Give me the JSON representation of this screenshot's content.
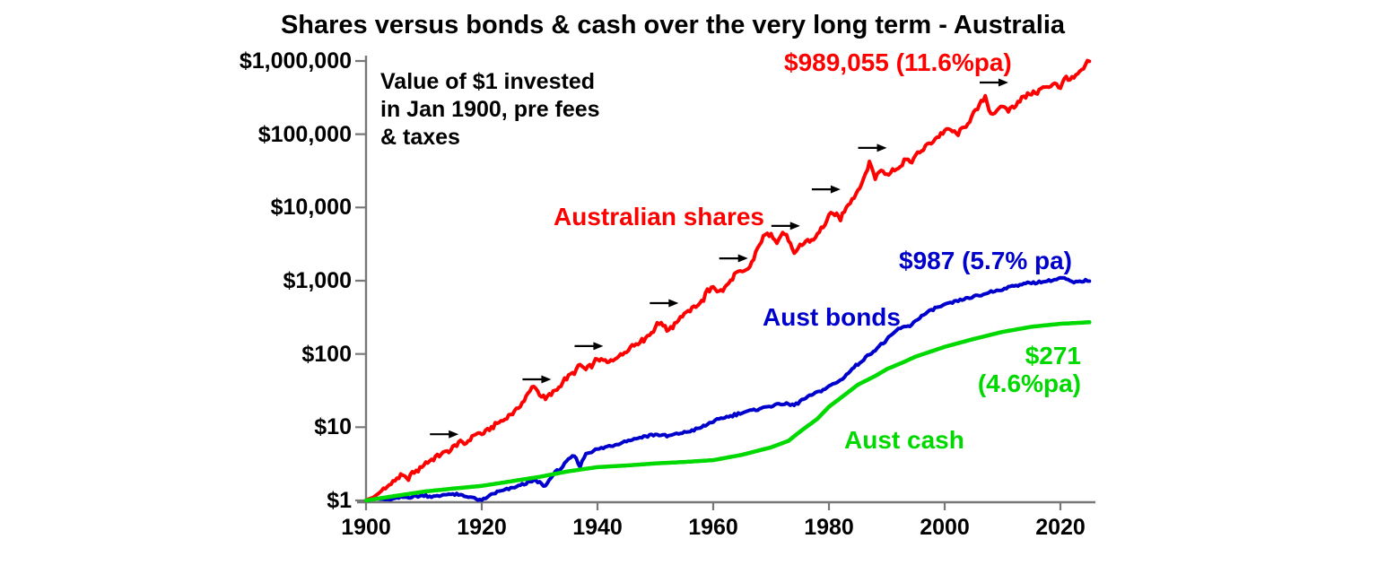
{
  "page": {
    "background": "#FFFFFF"
  },
  "chart_data": {
    "type": "line",
    "title": "Shares versus bonds & cash over the very long term - Australia",
    "annotation": "Value of $1 invested\nin Jan 1900, pre fees\n& taxes",
    "grid": false,
    "legend_position": "inline-labels",
    "x_axis": {
      "label": "",
      "range": [
        1900,
        2025.5
      ],
      "ticks": [
        1900,
        1920,
        1940,
        1960,
        1980,
        2000,
        2020
      ]
    },
    "y_axis": {
      "label": "",
      "scale": "log",
      "range": [
        1,
        1000000
      ],
      "ticks": [
        {
          "label": "$1,000,000",
          "value": 1000000
        },
        {
          "label": "$100,000",
          "value": 100000
        },
        {
          "label": "$10,000",
          "value": 10000
        },
        {
          "label": "$1,000",
          "value": 1000
        },
        {
          "label": "$100",
          "value": 100
        },
        {
          "label": "$10",
          "value": 10
        },
        {
          "label": "$1",
          "value": 1
        }
      ]
    },
    "colors": {
      "shares": "#FF0000",
      "bonds": "#0000CC",
      "cash": "#00D900",
      "axis": "#777777",
      "arrows": "#000000"
    },
    "series": [
      {
        "name": "Australian shares",
        "line_label": "Australian shares",
        "end_label": "$989,055 (11.6%pa)",
        "end_value": 989055,
        "cagr_pa": "11.6%",
        "color": "#FF0000",
        "jitter": 0.022,
        "points": [
          [
            1900,
            1.0
          ],
          [
            1901,
            1.08
          ],
          [
            1902,
            1.2
          ],
          [
            1903,
            1.45
          ],
          [
            1904,
            1.6
          ],
          [
            1905,
            1.9
          ],
          [
            1906,
            2.2
          ],
          [
            1907,
            1.95
          ],
          [
            1908,
            2.3
          ],
          [
            1909,
            2.6
          ],
          [
            1910,
            3.1
          ],
          [
            1911,
            3.5
          ],
          [
            1912,
            3.9
          ],
          [
            1913,
            4.4
          ],
          [
            1914,
            4.6
          ],
          [
            1915,
            5.2
          ],
          [
            1916,
            6.2
          ],
          [
            1917,
            6.0
          ],
          [
            1918,
            7.0
          ],
          [
            1919,
            8.2
          ],
          [
            1920,
            8.0
          ],
          [
            1921,
            9.0
          ],
          [
            1922,
            10.5
          ],
          [
            1923,
            11.5
          ],
          [
            1924,
            13
          ],
          [
            1925,
            15
          ],
          [
            1926,
            17.5
          ],
          [
            1927,
            21
          ],
          [
            1928,
            28
          ],
          [
            1929,
            38
          ],
          [
            1930,
            28
          ],
          [
            1931,
            24
          ],
          [
            1932,
            28
          ],
          [
            1933,
            33
          ],
          [
            1934,
            42
          ],
          [
            1935,
            48
          ],
          [
            1936,
            57
          ],
          [
            1937,
            70
          ],
          [
            1938,
            62
          ],
          [
            1939,
            68
          ],
          [
            1940,
            85
          ],
          [
            1941,
            80
          ],
          [
            1942,
            75
          ],
          [
            1943,
            90
          ],
          [
            1944,
            95
          ],
          [
            1945,
            110
          ],
          [
            1946,
            130
          ],
          [
            1947,
            145
          ],
          [
            1948,
            160
          ],
          [
            1949,
            185
          ],
          [
            1950,
            230
          ],
          [
            1951,
            280
          ],
          [
            1952,
            215
          ],
          [
            1953,
            240
          ],
          [
            1954,
            300
          ],
          [
            1955,
            350
          ],
          [
            1956,
            390
          ],
          [
            1957,
            450
          ],
          [
            1958,
            520
          ],
          [
            1959,
            700
          ],
          [
            1960,
            850
          ],
          [
            1961,
            700
          ],
          [
            1962,
            800
          ],
          [
            1963,
            1000
          ],
          [
            1964,
            1300
          ],
          [
            1965,
            1250
          ],
          [
            1966,
            1400
          ],
          [
            1967,
            2000
          ],
          [
            1968,
            3200
          ],
          [
            1969,
            4200
          ],
          [
            1970,
            4500
          ],
          [
            1971,
            3400
          ],
          [
            1972,
            4600
          ],
          [
            1973,
            3800
          ],
          [
            1974,
            2200
          ],
          [
            1975,
            3000
          ],
          [
            1976,
            3400
          ],
          [
            1977,
            3500
          ],
          [
            1978,
            4200
          ],
          [
            1979,
            5500
          ],
          [
            1980,
            7500
          ],
          [
            1981,
            8500
          ],
          [
            1982,
            7000
          ],
          [
            1983,
            10500
          ],
          [
            1984,
            13000
          ],
          [
            1985,
            17000
          ],
          [
            1986,
            24000
          ],
          [
            1987,
            42000
          ],
          [
            1988,
            26000
          ],
          [
            1989,
            33000
          ],
          [
            1990,
            28000
          ],
          [
            1991,
            34000
          ],
          [
            1992,
            33000
          ],
          [
            1993,
            46000
          ],
          [
            1994,
            42000
          ],
          [
            1995,
            50000
          ],
          [
            1996,
            60000
          ],
          [
            1997,
            72000
          ],
          [
            1998,
            80000
          ],
          [
            1999,
            95000
          ],
          [
            2000,
            110000
          ],
          [
            2001,
            115000
          ],
          [
            2002,
            100000
          ],
          [
            2003,
            115000
          ],
          [
            2004,
            145000
          ],
          [
            2005,
            185000
          ],
          [
            2006,
            240000
          ],
          [
            2007,
            330000
          ],
          [
            2008,
            190000
          ],
          [
            2009,
            200000
          ],
          [
            2010,
            240000
          ],
          [
            2011,
            215000
          ],
          [
            2012,
            240000
          ],
          [
            2013,
            300000
          ],
          [
            2014,
            330000
          ],
          [
            2015,
            370000
          ],
          [
            2016,
            380000
          ],
          [
            2017,
            440000
          ],
          [
            2018,
            430000
          ],
          [
            2019,
            520000
          ],
          [
            2020,
            430000
          ],
          [
            2021,
            600000
          ],
          [
            2022,
            560000
          ],
          [
            2023,
            650000
          ],
          [
            2024,
            800000
          ],
          [
            2025,
            989055
          ]
        ]
      },
      {
        "name": "Aust bonds",
        "line_label": "Aust bonds",
        "end_label": "$987 (5.7% pa)",
        "end_value": 987,
        "cagr_pa": "5.7%",
        "color": "#0000CC",
        "jitter": 0.011,
        "points": [
          [
            1900,
            1.0
          ],
          [
            1902,
            1.05
          ],
          [
            1904,
            1.02
          ],
          [
            1906,
            1.1
          ],
          [
            1908,
            1.12
          ],
          [
            1910,
            1.18
          ],
          [
            1912,
            1.12
          ],
          [
            1914,
            1.22
          ],
          [
            1916,
            1.18
          ],
          [
            1918,
            1.12
          ],
          [
            1920,
            0.98
          ],
          [
            1921,
            1.12
          ],
          [
            1922,
            1.25
          ],
          [
            1924,
            1.4
          ],
          [
            1926,
            1.55
          ],
          [
            1928,
            1.75
          ],
          [
            1929,
            1.85
          ],
          [
            1930,
            1.75
          ],
          [
            1931,
            1.55
          ],
          [
            1932,
            2.1
          ],
          [
            1933,
            2.5
          ],
          [
            1934,
            2.9
          ],
          [
            1935,
            3.6
          ],
          [
            1936,
            4.1
          ],
          [
            1937,
            2.9
          ],
          [
            1938,
            4.4
          ],
          [
            1939,
            4.7
          ],
          [
            1940,
            5.0
          ],
          [
            1942,
            5.5
          ],
          [
            1944,
            6.1
          ],
          [
            1946,
            6.8
          ],
          [
            1948,
            7.4
          ],
          [
            1950,
            8.0
          ],
          [
            1952,
            7.5
          ],
          [
            1954,
            8.2
          ],
          [
            1956,
            8.8
          ],
          [
            1958,
            10
          ],
          [
            1960,
            12
          ],
          [
            1962,
            13.5
          ],
          [
            1964,
            15
          ],
          [
            1966,
            16.5
          ],
          [
            1968,
            18
          ],
          [
            1970,
            19.5
          ],
          [
            1972,
            21
          ],
          [
            1974,
            20
          ],
          [
            1976,
            25
          ],
          [
            1978,
            30
          ],
          [
            1980,
            36
          ],
          [
            1982,
            44
          ],
          [
            1984,
            62
          ],
          [
            1986,
            85
          ],
          [
            1988,
            115
          ],
          [
            1990,
            155
          ],
          [
            1992,
            220
          ],
          [
            1994,
            245
          ],
          [
            1996,
            330
          ],
          [
            1998,
            410
          ],
          [
            2000,
            465
          ],
          [
            2002,
            525
          ],
          [
            2004,
            575
          ],
          [
            2006,
            625
          ],
          [
            2008,
            705
          ],
          [
            2010,
            765
          ],
          [
            2012,
            860
          ],
          [
            2014,
            905
          ],
          [
            2016,
            955
          ],
          [
            2018,
            985
          ],
          [
            2020,
            1075
          ],
          [
            2021,
            1060
          ],
          [
            2022,
            945
          ],
          [
            2023,
            955
          ],
          [
            2024,
            1005
          ],
          [
            2025,
            987
          ]
        ]
      },
      {
        "name": "Aust cash",
        "line_label": "Aust cash",
        "end_label": "$271\n(4.6%pa)",
        "end_value": 271,
        "cagr_pa": "4.6%",
        "color": "#00D900",
        "jitter": 0,
        "points": [
          [
            1900,
            1.0
          ],
          [
            1905,
            1.15
          ],
          [
            1910,
            1.32
          ],
          [
            1915,
            1.45
          ],
          [
            1920,
            1.58
          ],
          [
            1925,
            1.82
          ],
          [
            1930,
            2.1
          ],
          [
            1935,
            2.5
          ],
          [
            1940,
            2.85
          ],
          [
            1945,
            3.0
          ],
          [
            1950,
            3.2
          ],
          [
            1955,
            3.35
          ],
          [
            1960,
            3.55
          ],
          [
            1965,
            4.2
          ],
          [
            1970,
            5.3
          ],
          [
            1973,
            6.5
          ],
          [
            1975,
            8.7
          ],
          [
            1978,
            13
          ],
          [
            1980,
            19
          ],
          [
            1982,
            25
          ],
          [
            1985,
            38
          ],
          [
            1988,
            50
          ],
          [
            1990,
            62
          ],
          [
            1993,
            78
          ],
          [
            1995,
            92
          ],
          [
            2000,
            125
          ],
          [
            2005,
            160
          ],
          [
            2010,
            200
          ],
          [
            2015,
            235
          ],
          [
            2020,
            258
          ],
          [
            2025,
            271
          ]
        ]
      }
    ],
    "event_arrows": [
      {
        "year": 1916,
        "value": 8
      },
      {
        "year": 1932,
        "value": 45
      },
      {
        "year": 1941,
        "value": 128
      },
      {
        "year": 1954,
        "value": 494
      },
      {
        "year": 1966,
        "value": 2020
      },
      {
        "year": 1975,
        "value": 5600
      },
      {
        "year": 1982,
        "value": 17700
      },
      {
        "year": 1990,
        "value": 65000
      },
      {
        "year": 2011,
        "value": 508000
      }
    ]
  }
}
